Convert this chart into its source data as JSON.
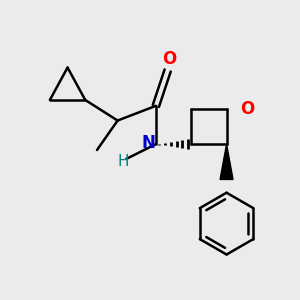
{
  "bg_color": "#ebebeb",
  "bond_color": "#000000",
  "bond_width": 1.8,
  "N_color": "#0000cc",
  "O_color": "#ff0000",
  "H_color": "#008080",
  "figsize": [
    3.0,
    3.0
  ],
  "dpi": 100,
  "xlim": [
    0,
    10
  ],
  "ylim": [
    0,
    10
  ]
}
